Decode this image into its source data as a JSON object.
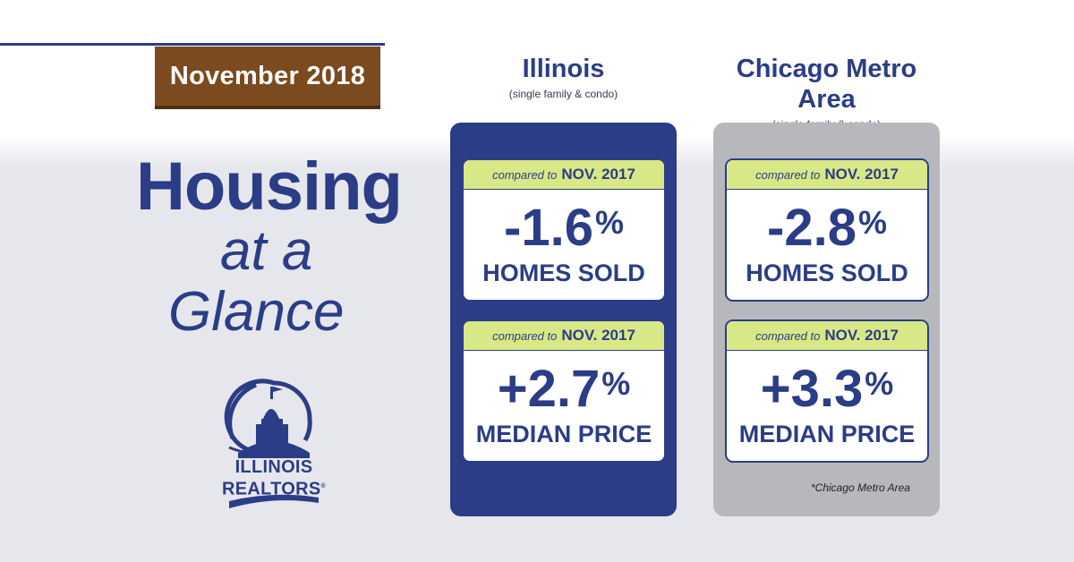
{
  "date_badge": "November 2018",
  "headline": {
    "line1": "Housing",
    "line2": "at a",
    "line3": "Glance"
  },
  "logo": {
    "line1": "ILLINOIS",
    "line2": "REALTORS",
    "mark": "®"
  },
  "columns": [
    {
      "name": "Illinois",
      "sub": "(single family & condo)",
      "cards": [
        {
          "compared": "compared to",
          "period": "NOV. 2017",
          "value": "-1.6",
          "unit": "%",
          "label": "HOMES SOLD"
        },
        {
          "compared": "compared to",
          "period": "NOV. 2017",
          "value": "+2.7",
          "unit": "%",
          "label": "MEDIAN PRICE"
        }
      ]
    },
    {
      "name": "Chicago Metro Area",
      "sub": "(single family & condo)",
      "cards": [
        {
          "compared": "compared to",
          "period": "NOV. 2017",
          "value": "-2.8",
          "unit": "%",
          "label": "HOMES SOLD"
        },
        {
          "compared": "compared to",
          "period": "NOV. 2017",
          "value": "+3.3",
          "unit": "%",
          "label": "MEDIAN PRICE"
        }
      ]
    }
  ],
  "footnote": "*Chicago Metro Area",
  "colors": {
    "navy": "#2b3d86",
    "brown": "#7b4a1f",
    "lime": "#d9e886",
    "gray": "#b7b8bc"
  }
}
